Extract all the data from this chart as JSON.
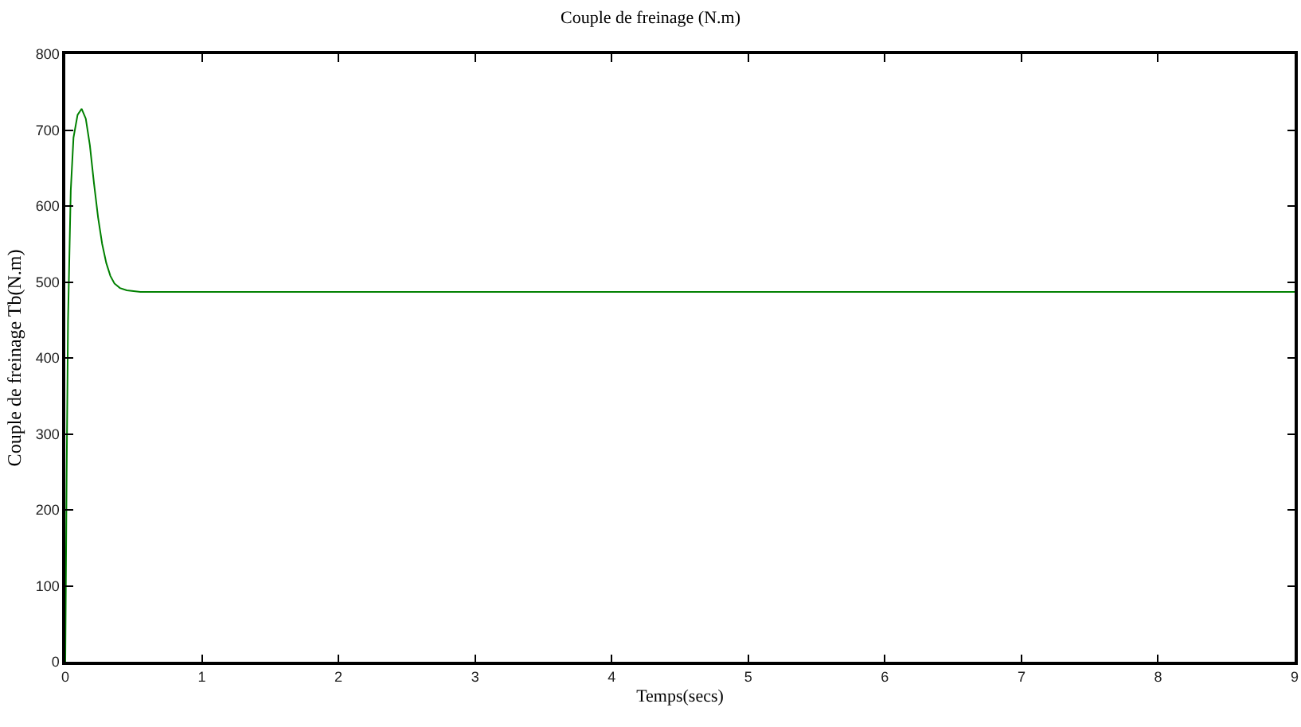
{
  "chart_data": {
    "type": "line",
    "title": "Couple de freinage (N.m)",
    "xlabel": "Temps(secs)",
    "ylabel": "Couple de freinage Tb(N.m)",
    "x": [
      0,
      0.01,
      0.02,
      0.04,
      0.06,
      0.09,
      0.12,
      0.15,
      0.18,
      0.21,
      0.24,
      0.27,
      0.3,
      0.33,
      0.36,
      0.4,
      0.45,
      0.5,
      0.55,
      9
    ],
    "series": [
      {
        "color": "#008000",
        "values": [
          0,
          250,
          450,
          620,
          690,
          720,
          728,
          715,
          680,
          630,
          585,
          550,
          525,
          508,
          498,
          492,
          489,
          488,
          487,
          487
        ]
      }
    ],
    "xlim": [
      0,
      9
    ],
    "xticks": [
      0,
      1,
      2,
      3,
      4,
      5,
      6,
      7,
      8,
      9
    ],
    "ylim": [
      0,
      800
    ],
    "yticks": [
      0,
      100,
      200,
      300,
      400,
      500,
      600,
      700,
      800
    ],
    "grid": false
  }
}
